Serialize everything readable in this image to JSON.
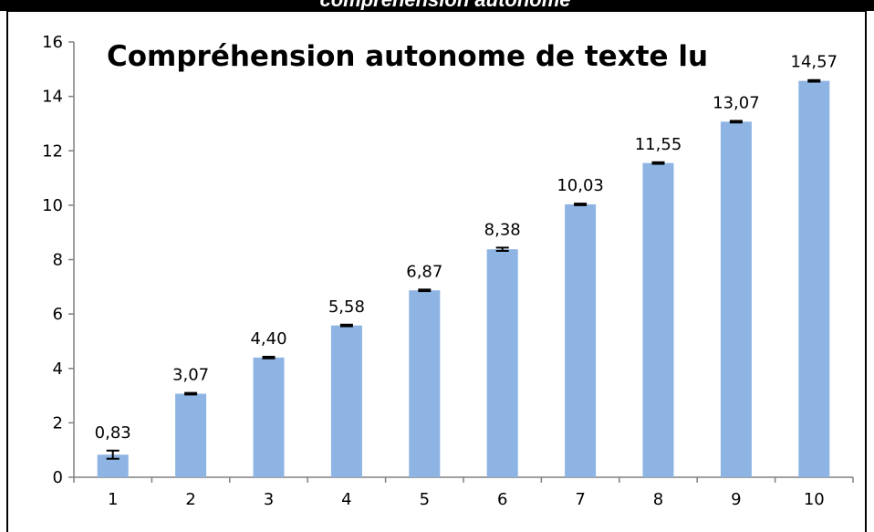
{
  "header": {
    "title": "compréhension autonome"
  },
  "chart_data": {
    "type": "bar",
    "title": "Compréhension autonome de texte lu",
    "categories": [
      "1",
      "2",
      "3",
      "4",
      "5",
      "6",
      "7",
      "8",
      "9",
      "10"
    ],
    "values": [
      0.83,
      3.07,
      4.4,
      5.58,
      6.87,
      8.38,
      10.03,
      11.55,
      13.07,
      14.57
    ],
    "value_labels": [
      "0,83",
      "3,07",
      "4,40",
      "5,58",
      "6,87",
      "8,38",
      "10,03",
      "11,55",
      "13,07",
      "14,57"
    ],
    "errors": [
      0.15,
      0.03,
      0.03,
      0.03,
      0.03,
      0.06,
      0.03,
      0.03,
      0.03,
      0.03
    ],
    "color": "#8db4e3",
    "ylim": [
      0,
      16
    ],
    "yticks": [
      0,
      2,
      4,
      6,
      8,
      10,
      12,
      14,
      16
    ],
    "grid": false
  }
}
